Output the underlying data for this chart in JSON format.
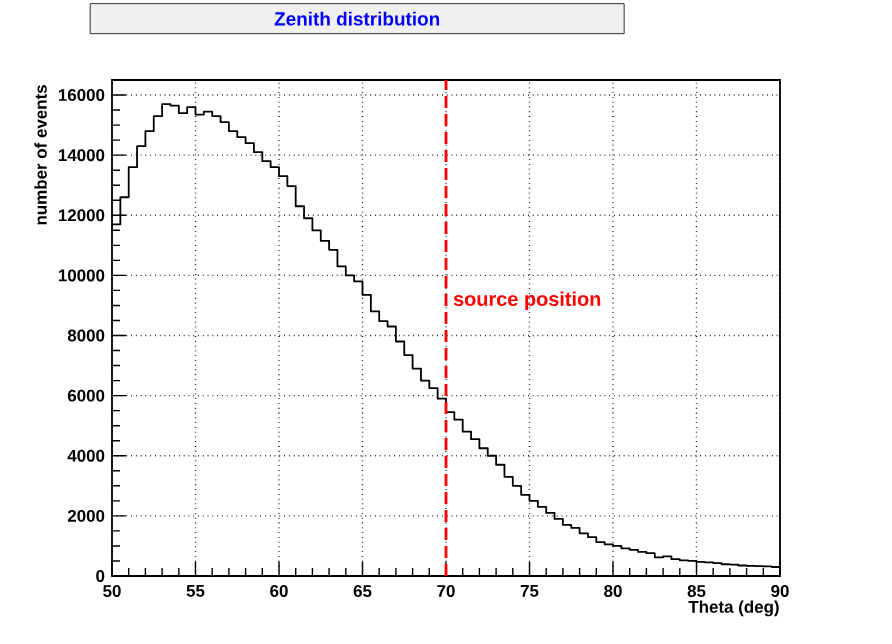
{
  "chart_data": {
    "type": "histogram",
    "title": "Zenith distribution",
    "xlabel": "Theta (deg)",
    "ylabel": "number of events",
    "bins": [
      50,
      50.5,
      51,
      51.5,
      52,
      52.5,
      53,
      53.5,
      54,
      54.5,
      55,
      55.5,
      56,
      56.5,
      57,
      57.5,
      58,
      58.5,
      59,
      59.5,
      60,
      60.5,
      61,
      61.5,
      62,
      62.5,
      63,
      63.5,
      64,
      64.5,
      65,
      65.5,
      66,
      66.5,
      67,
      67.5,
      68,
      68.5,
      69,
      69.5,
      70,
      70.5,
      71,
      71.5,
      72,
      72.5,
      73,
      73.5,
      74,
      74.5,
      75,
      75.5,
      76,
      76.5,
      77,
      77.5,
      78,
      78.5,
      79,
      79.5,
      80,
      80.5,
      81,
      81.5,
      82,
      82.5,
      83,
      83.5,
      84,
      84.5,
      85,
      85.5,
      86,
      86.5,
      87,
      87.5,
      88,
      88.5,
      89,
      89.5,
      90
    ],
    "values": [
      11700,
      12600,
      13600,
      14300,
      14800,
      15300,
      15700,
      15650,
      15400,
      15600,
      15350,
      15450,
      15300,
      15100,
      14800,
      14600,
      14400,
      14100,
      13800,
      13600,
      13300,
      12970,
      12300,
      11900,
      11500,
      11150,
      10850,
      10300,
      10000,
      9800,
      9350,
      8800,
      8480,
      8300,
      7800,
      7350,
      6900,
      6500,
      6250,
      5900,
      5450,
      5200,
      4800,
      4550,
      4250,
      4000,
      3700,
      3300,
      3000,
      2700,
      2500,
      2300,
      2100,
      1900,
      1700,
      1600,
      1420,
      1290,
      1130,
      1050,
      1000,
      920,
      870,
      800,
      760,
      620,
      650,
      560,
      520,
      500,
      470,
      450,
      430,
      390,
      380,
      350,
      340,
      330,
      320,
      300
    ],
    "color": "#000000",
    "xlim": [
      50,
      90
    ],
    "ylim": [
      0,
      16500
    ],
    "xticks": [
      50,
      55,
      60,
      65,
      70,
      75,
      80,
      85,
      90
    ],
    "yticks": [
      0,
      2000,
      4000,
      6000,
      8000,
      10000,
      12000,
      14000,
      16000
    ],
    "grid": true,
    "ref_lines": [
      {
        "axis": "x",
        "value": 70,
        "label": "source position",
        "color": "#ff0000",
        "line_style": "dashed"
      }
    ]
  }
}
